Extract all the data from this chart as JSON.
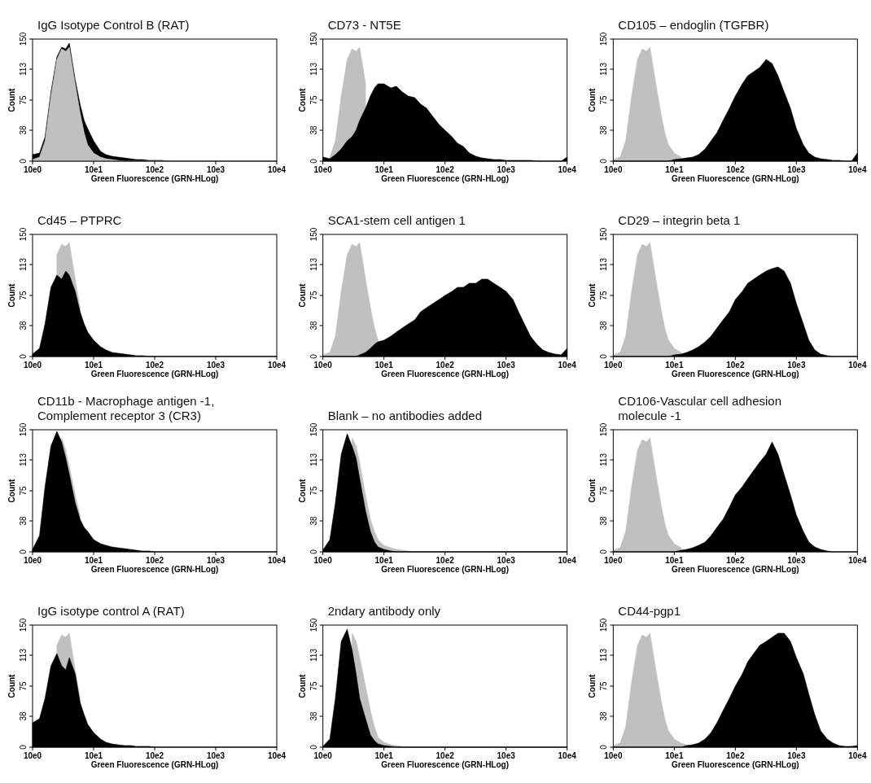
{
  "chart_data": [
    {
      "type": "area",
      "title": "IgG Isotype Control B (RAT)",
      "xlabel": "Green Fluorescence (GRN-HLog)",
      "ylabel": "Count",
      "log": "x",
      "xlim": [
        10,
        100000
      ],
      "ylim": [
        0,
        150
      ],
      "xticks": [
        {
          "value": 10,
          "label": "10e0"
        },
        {
          "value": 100,
          "label": "10e1"
        },
        {
          "value": 1000,
          "label": "10e2"
        },
        {
          "value": 10000,
          "label": "10e3"
        },
        {
          "value": 100000,
          "label": "10e4"
        }
      ],
      "yticks": [
        0,
        38,
        75,
        113,
        150
      ],
      "x": [
        10,
        13,
        16,
        20,
        25,
        30,
        35,
        40,
        50,
        60,
        70,
        80,
        100,
        130,
        160,
        200,
        250,
        320,
        400,
        500,
        630,
        800,
        1000,
        1300,
        1600,
        2000,
        2500,
        3200,
        4000,
        5000,
        6300,
        8000,
        10000,
        13000,
        16000,
        20000,
        25000,
        32000,
        40000,
        50000,
        63000,
        80000,
        100000
      ],
      "series": [
        {
          "color": "#000000",
          "values": [
            8,
            10,
            30,
            85,
            128,
            140,
            138,
            145,
            100,
            70,
            50,
            40,
            25,
            12,
            8,
            6,
            5,
            4,
            3,
            2,
            2,
            1,
            1,
            1,
            0,
            0,
            0,
            0,
            0,
            0,
            0,
            0,
            0,
            0,
            0,
            0,
            0,
            0,
            0,
            0,
            0,
            0,
            0
          ]
        },
        {
          "color": "#c0c0c0",
          "values": [
            2,
            5,
            25,
            80,
            125,
            138,
            135,
            140,
            95,
            60,
            35,
            20,
            10,
            5,
            3,
            2,
            1,
            0,
            0,
            0,
            0,
            0,
            0,
            0,
            0,
            0,
            0,
            0,
            0,
            0,
            0,
            0,
            0,
            0,
            0,
            0,
            0,
            0,
            0,
            0,
            0,
            0,
            0
          ]
        }
      ]
    },
    {
      "type": "area",
      "title": "CD73  - NT5E",
      "xlabel": "Green Fluorescence (GRN-HLog)",
      "ylabel": "Count",
      "log": "x",
      "xlim": [
        10,
        100000
      ],
      "ylim": [
        0,
        150
      ],
      "xticks": [
        {
          "value": 10,
          "label": "10e0"
        },
        {
          "value": 100,
          "label": "10e1"
        },
        {
          "value": 1000,
          "label": "10e2"
        },
        {
          "value": 10000,
          "label": "10e3"
        },
        {
          "value": 100000,
          "label": "10e4"
        }
      ],
      "yticks": [
        0,
        38,
        75,
        113,
        150
      ],
      "x": [
        10,
        13,
        16,
        20,
        25,
        30,
        35,
        40,
        50,
        60,
        70,
        80,
        100,
        130,
        160,
        200,
        250,
        320,
        400,
        500,
        630,
        800,
        1000,
        1300,
        1600,
        2000,
        2500,
        3200,
        4000,
        5000,
        6300,
        8000,
        10000,
        13000,
        16000,
        20000,
        25000,
        32000,
        40000,
        50000,
        63000,
        80000,
        100000
      ],
      "series": [
        {
          "color": "#c0c0c0",
          "values": [
            null,
            5,
            25,
            80,
            125,
            138,
            135,
            140,
            95,
            null,
            null,
            null,
            null,
            null,
            null,
            null,
            null,
            null,
            null,
            null,
            null,
            null,
            null,
            null,
            null,
            null,
            null,
            null,
            null,
            null,
            null,
            null,
            null,
            null,
            null,
            null,
            null,
            null,
            null,
            null,
            null,
            null,
            null
          ]
        },
        {
          "color": "#000000",
          "values": [
            5,
            3,
            8,
            15,
            25,
            30,
            38,
            50,
            65,
            80,
            90,
            95,
            95,
            90,
            92,
            85,
            80,
            78,
            70,
            65,
            55,
            45,
            38,
            30,
            22,
            18,
            10,
            6,
            4,
            3,
            2,
            2,
            1,
            1,
            1,
            1,
            1,
            0,
            0,
            0,
            0,
            0,
            5
          ]
        }
      ]
    },
    {
      "type": "area",
      "title": "CD105 – endoglin (TGFBR)",
      "xlabel": "Green Fluorescence (GRN-HLog)",
      "ylabel": "Count",
      "log": "x",
      "xlim": [
        10,
        100000
      ],
      "ylim": [
        0,
        150
      ],
      "xticks": [
        {
          "value": 10,
          "label": "10e0"
        },
        {
          "value": 100,
          "label": "10e1"
        },
        {
          "value": 1000,
          "label": "10e2"
        },
        {
          "value": 10000,
          "label": "10e3"
        },
        {
          "value": 100000,
          "label": "10e4"
        }
      ],
      "yticks": [
        0,
        38,
        75,
        113,
        150
      ],
      "x": [
        10,
        13,
        16,
        20,
        25,
        30,
        35,
        40,
        50,
        60,
        70,
        80,
        100,
        130,
        160,
        200,
        250,
        320,
        400,
        500,
        630,
        800,
        1000,
        1300,
        1600,
        2000,
        2500,
        3200,
        4000,
        5000,
        6300,
        8000,
        10000,
        13000,
        16000,
        20000,
        25000,
        32000,
        40000,
        50000,
        63000,
        80000,
        100000
      ],
      "series": [
        {
          "color": "#c0c0c0",
          "values": [
            2,
            5,
            25,
            80,
            125,
            138,
            135,
            140,
            95,
            60,
            35,
            20,
            10,
            5,
            null,
            null,
            null,
            null,
            null,
            null,
            null,
            null,
            null,
            null,
            null,
            null,
            null,
            null,
            null,
            null,
            null,
            null,
            null,
            null,
            null,
            null,
            null,
            null,
            null,
            null,
            null,
            null,
            null
          ]
        },
        {
          "color": "#000000",
          "values": [
            0,
            0,
            0,
            0,
            0,
            0,
            0,
            0,
            0,
            0,
            0,
            0,
            2,
            3,
            4,
            5,
            8,
            15,
            25,
            35,
            50,
            65,
            80,
            95,
            105,
            110,
            115,
            125,
            120,
            105,
            85,
            65,
            40,
            20,
            10,
            5,
            3,
            2,
            1,
            1,
            0,
            0,
            10
          ]
        }
      ]
    },
    {
      "type": "area",
      "title": "Cd45 – PTPRC",
      "xlabel": "Green Fluorescence (GRN-HLog)",
      "ylabel": "Count",
      "log": "x",
      "xlim": [
        10,
        100000
      ],
      "ylim": [
        0,
        150
      ],
      "xticks": [
        {
          "value": 10,
          "label": "10e0"
        },
        {
          "value": 100,
          "label": "10e1"
        },
        {
          "value": 1000,
          "label": "10e2"
        },
        {
          "value": 10000,
          "label": "10e3"
        },
        {
          "value": 100000,
          "label": "10e4"
        }
      ],
      "yticks": [
        0,
        38,
        75,
        113,
        150
      ],
      "x": [
        10,
        13,
        16,
        20,
        25,
        30,
        35,
        40,
        50,
        60,
        70,
        80,
        100,
        130,
        160,
        200,
        250,
        320,
        400,
        500,
        630,
        800,
        1000,
        1300,
        1600,
        2000,
        2500,
        3200,
        4000,
        5000,
        6300,
        8000,
        10000,
        13000,
        16000,
        20000,
        25000,
        32000,
        40000,
        50000,
        63000,
        80000,
        100000
      ],
      "series": [
        {
          "color": "#c0c0c0",
          "values": [
            null,
            null,
            null,
            null,
            125,
            138,
            135,
            140,
            95,
            60,
            null,
            null,
            null,
            null,
            null,
            null,
            null,
            null,
            null,
            null,
            null,
            null,
            null,
            null,
            null,
            null,
            null,
            null,
            null,
            null,
            null,
            null,
            null,
            null,
            null,
            null,
            null,
            null,
            null,
            null,
            null,
            null,
            null
          ]
        },
        {
          "color": "#000000",
          "values": [
            3,
            10,
            40,
            85,
            100,
            95,
            105,
            100,
            80,
            55,
            40,
            30,
            20,
            12,
            8,
            5,
            4,
            3,
            2,
            1,
            1,
            0,
            0,
            0,
            0,
            0,
            0,
            0,
            0,
            0,
            0,
            0,
            0,
            0,
            0,
            0,
            0,
            0,
            0,
            0,
            0,
            0,
            0
          ]
        }
      ]
    },
    {
      "type": "area",
      "title": "SCA1-stem cell antigen 1",
      "xlabel": "Green Fluorescence (GRN-HLog)",
      "ylabel": "Count",
      "log": "x",
      "xlim": [
        10,
        100000
      ],
      "ylim": [
        0,
        150
      ],
      "xticks": [
        {
          "value": 10,
          "label": "10e0"
        },
        {
          "value": 100,
          "label": "10e1"
        },
        {
          "value": 1000,
          "label": "10e2"
        },
        {
          "value": 10000,
          "label": "10e3"
        },
        {
          "value": 100000,
          "label": "10e4"
        }
      ],
      "yticks": [
        0,
        38,
        75,
        113,
        150
      ],
      "x": [
        10,
        13,
        16,
        20,
        25,
        30,
        35,
        40,
        50,
        60,
        70,
        80,
        100,
        130,
        160,
        200,
        250,
        320,
        400,
        500,
        630,
        800,
        1000,
        1300,
        1600,
        2000,
        2500,
        3200,
        4000,
        5000,
        6300,
        8000,
        10000,
        13000,
        16000,
        20000,
        25000,
        32000,
        40000,
        50000,
        63000,
        80000,
        100000
      ],
      "series": [
        {
          "color": "#c0c0c0",
          "values": [
            2,
            5,
            25,
            80,
            125,
            138,
            135,
            140,
            95,
            60,
            35,
            20,
            null,
            null,
            null,
            null,
            null,
            null,
            null,
            null,
            null,
            null,
            null,
            null,
            null,
            null,
            null,
            null,
            null,
            null,
            null,
            null,
            null,
            null,
            null,
            null,
            null,
            null,
            null,
            null,
            null,
            null,
            null
          ]
        },
        {
          "color": "#000000",
          "values": [
            0,
            0,
            0,
            0,
            0,
            0,
            0,
            2,
            5,
            10,
            15,
            18,
            20,
            25,
            30,
            35,
            40,
            45,
            55,
            60,
            65,
            70,
            75,
            80,
            85,
            85,
            90,
            90,
            95,
            95,
            90,
            85,
            80,
            70,
            55,
            40,
            25,
            15,
            8,
            5,
            3,
            2,
            10
          ]
        }
      ]
    },
    {
      "type": "area",
      "title": "CD29 – integrin beta 1",
      "xlabel": "Green Fluorescence (GRN-HLog)",
      "ylabel": "Count",
      "log": "x",
      "xlim": [
        10,
        100000
      ],
      "ylim": [
        0,
        150
      ],
      "xticks": [
        {
          "value": 10,
          "label": "10e0"
        },
        {
          "value": 100,
          "label": "10e1"
        },
        {
          "value": 1000,
          "label": "10e2"
        },
        {
          "value": 10000,
          "label": "10e3"
        },
        {
          "value": 100000,
          "label": "10e4"
        }
      ],
      "yticks": [
        0,
        38,
        75,
        113,
        150
      ],
      "x": [
        10,
        13,
        16,
        20,
        25,
        30,
        35,
        40,
        50,
        60,
        70,
        80,
        100,
        130,
        160,
        200,
        250,
        320,
        400,
        500,
        630,
        800,
        1000,
        1300,
        1600,
        2000,
        2500,
        3200,
        4000,
        5000,
        6300,
        8000,
        10000,
        13000,
        16000,
        20000,
        25000,
        32000,
        40000,
        50000,
        63000,
        80000,
        100000
      ],
      "series": [
        {
          "color": "#c0c0c0",
          "values": [
            2,
            5,
            25,
            80,
            125,
            138,
            135,
            140,
            95,
            60,
            35,
            20,
            10,
            5,
            null,
            null,
            null,
            null,
            null,
            null,
            null,
            null,
            null,
            null,
            null,
            null,
            null,
            null,
            null,
            null,
            null,
            null,
            null,
            null,
            null,
            null,
            null,
            null,
            null,
            null,
            null,
            null,
            null
          ]
        },
        {
          "color": "#000000",
          "values": [
            0,
            0,
            0,
            0,
            0,
            0,
            0,
            0,
            0,
            0,
            0,
            0,
            2,
            3,
            5,
            8,
            12,
            18,
            25,
            35,
            45,
            55,
            70,
            80,
            90,
            95,
            100,
            105,
            108,
            110,
            105,
            90,
            65,
            40,
            20,
            8,
            3,
            1,
            0,
            0,
            0,
            0,
            0
          ]
        }
      ]
    },
    {
      "type": "area",
      "title": "CD11b  - Macrophage antigen -1, Complement receptor 3 (CR3)",
      "xlabel": "Green Fluorescence (GRN-HLog)",
      "ylabel": "Count",
      "log": "x",
      "xlim": [
        10,
        100000
      ],
      "ylim": [
        0,
        150
      ],
      "xticks": [
        {
          "value": 10,
          "label": "10e0"
        },
        {
          "value": 100,
          "label": "10e1"
        },
        {
          "value": 1000,
          "label": "10e2"
        },
        {
          "value": 10000,
          "label": "10e3"
        },
        {
          "value": 100000,
          "label": "10e4"
        }
      ],
      "yticks": [
        0,
        38,
        75,
        113,
        150
      ],
      "x": [
        10,
        13,
        16,
        20,
        25,
        30,
        35,
        40,
        50,
        60,
        70,
        80,
        100,
        130,
        160,
        200,
        250,
        320,
        400,
        500,
        630,
        800,
        1000,
        1300,
        1600,
        2000,
        2500,
        3200,
        4000,
        5000,
        6300,
        8000,
        10000,
        13000,
        16000,
        20000,
        25000,
        32000,
        40000,
        50000,
        63000,
        80000,
        100000
      ],
      "series": [
        {
          "color": "#c0c0c0",
          "values": [
            null,
            null,
            null,
            null,
            null,
            140,
            125,
            105,
            70,
            45,
            null,
            null,
            null,
            null,
            null,
            null,
            null,
            null,
            null,
            null,
            null,
            null,
            null,
            null,
            null,
            null,
            null,
            null,
            null,
            null,
            null,
            null,
            null,
            null,
            null,
            null,
            null,
            null,
            null,
            null,
            null,
            null,
            null
          ]
        },
        {
          "color": "#000000",
          "values": [
            3,
            20,
            80,
            130,
            148,
            135,
            115,
            95,
            60,
            40,
            30,
            25,
            15,
            10,
            8,
            6,
            5,
            4,
            3,
            2,
            1,
            1,
            0,
            0,
            0,
            0,
            0,
            0,
            0,
            0,
            0,
            0,
            0,
            0,
            0,
            0,
            0,
            0,
            0,
            0,
            0,
            0,
            0
          ]
        }
      ]
    },
    {
      "type": "area",
      "title": "Blank – no antibodies added",
      "xlabel": "Green Fluorescence (GRN-HLog)",
      "ylabel": "Count",
      "log": "x",
      "xlim": [
        10,
        100000
      ],
      "ylim": [
        0,
        150
      ],
      "xticks": [
        {
          "value": 10,
          "label": "10e0"
        },
        {
          "value": 100,
          "label": "10e1"
        },
        {
          "value": 1000,
          "label": "10e2"
        },
        {
          "value": 10000,
          "label": "10e3"
        },
        {
          "value": 100000,
          "label": "10e4"
        }
      ],
      "yticks": [
        0,
        38,
        75,
        113,
        150
      ],
      "x": [
        10,
        13,
        16,
        20,
        25,
        30,
        35,
        40,
        50,
        60,
        70,
        80,
        100,
        130,
        160,
        200,
        250,
        320,
        400,
        500,
        630,
        800,
        1000,
        1300,
        1600,
        2000,
        2500,
        3200,
        4000,
        5000,
        6300,
        8000,
        10000,
        13000,
        16000,
        20000,
        25000,
        32000,
        40000,
        50000,
        63000,
        80000,
        100000
      ],
      "series": [
        {
          "color": "#c0c0c0",
          "values": [
            null,
            null,
            null,
            null,
            null,
            140,
            130,
            110,
            70,
            40,
            25,
            15,
            8,
            5,
            3,
            2,
            1,
            0,
            0,
            0,
            0,
            0,
            0,
            0,
            0,
            0,
            0,
            0,
            0,
            0,
            0,
            0,
            0,
            0,
            0,
            0,
            0,
            0,
            0,
            0,
            0,
            0,
            0
          ]
        },
        {
          "color": "#000000",
          "values": [
            2,
            15,
            60,
            120,
            145,
            130,
            115,
            90,
            50,
            25,
            12,
            6,
            3,
            1,
            0,
            0,
            0,
            0,
            0,
            0,
            0,
            0,
            0,
            0,
            0,
            0,
            0,
            0,
            0,
            0,
            0,
            0,
            0,
            0,
            0,
            0,
            0,
            0,
            0,
            0,
            0,
            0,
            0
          ]
        }
      ]
    },
    {
      "type": "area",
      "title": "CD106-Vascular cell adhesion molecule -1",
      "xlabel": "Green Fluorescence (GRN-HLog)",
      "ylabel": "Count",
      "log": "x",
      "xlim": [
        10,
        100000
      ],
      "ylim": [
        0,
        150
      ],
      "xticks": [
        {
          "value": 10,
          "label": "10e0"
        },
        {
          "value": 100,
          "label": "10e1"
        },
        {
          "value": 1000,
          "label": "10e2"
        },
        {
          "value": 10000,
          "label": "10e3"
        },
        {
          "value": 100000,
          "label": "10e4"
        }
      ],
      "yticks": [
        0,
        38,
        75,
        113,
        150
      ],
      "x": [
        10,
        13,
        16,
        20,
        25,
        30,
        35,
        40,
        50,
        60,
        70,
        80,
        100,
        130,
        160,
        200,
        250,
        320,
        400,
        500,
        630,
        800,
        1000,
        1300,
        1600,
        2000,
        2500,
        3200,
        4000,
        5000,
        6300,
        8000,
        10000,
        13000,
        16000,
        20000,
        25000,
        32000,
        40000,
        50000,
        63000,
        80000,
        100000
      ],
      "series": [
        {
          "color": "#c0c0c0",
          "values": [
            2,
            5,
            25,
            80,
            125,
            138,
            135,
            140,
            95,
            60,
            35,
            20,
            10,
            5,
            null,
            null,
            null,
            null,
            null,
            null,
            null,
            null,
            null,
            null,
            null,
            null,
            null,
            null,
            null,
            null,
            null,
            null,
            null,
            null,
            null,
            null,
            null,
            null,
            null,
            null,
            null,
            null,
            null
          ]
        },
        {
          "color": "#000000",
          "values": [
            0,
            0,
            0,
            0,
            0,
            0,
            0,
            0,
            0,
            0,
            0,
            0,
            0,
            2,
            3,
            5,
            8,
            12,
            20,
            30,
            40,
            55,
            70,
            80,
            90,
            100,
            110,
            120,
            135,
            120,
            95,
            70,
            45,
            25,
            12,
            6,
            3,
            1,
            0,
            0,
            0,
            0,
            0
          ]
        }
      ]
    },
    {
      "type": "area",
      "title": "IgG isotype control A (RAT)",
      "xlabel": "Green Fluorescence (GRN-HLog)",
      "ylabel": "Count",
      "log": "x",
      "xlim": [
        10,
        100000
      ],
      "ylim": [
        0,
        150
      ],
      "xticks": [
        {
          "value": 10,
          "label": "10e0"
        },
        {
          "value": 100,
          "label": "10e1"
        },
        {
          "value": 1000,
          "label": "10e2"
        },
        {
          "value": 10000,
          "label": "10e3"
        },
        {
          "value": 100000,
          "label": "10e4"
        }
      ],
      "yticks": [
        0,
        38,
        75,
        113,
        150
      ],
      "x": [
        10,
        13,
        16,
        20,
        25,
        30,
        35,
        40,
        50,
        60,
        70,
        80,
        100,
        130,
        160,
        200,
        250,
        320,
        400,
        500,
        630,
        800,
        1000,
        1300,
        1600,
        2000,
        2500,
        3200,
        4000,
        5000,
        6300,
        8000,
        10000,
        13000,
        16000,
        20000,
        25000,
        32000,
        40000,
        50000,
        63000,
        80000,
        100000
      ],
      "series": [
        {
          "color": "#c0c0c0",
          "values": [
            null,
            null,
            null,
            null,
            125,
            138,
            135,
            140,
            95,
            60,
            null,
            null,
            null,
            null,
            null,
            null,
            null,
            null,
            null,
            null,
            null,
            null,
            null,
            null,
            null,
            null,
            null,
            null,
            null,
            null,
            null,
            null,
            null,
            null,
            null,
            null,
            null,
            null,
            null,
            null,
            null,
            null,
            null
          ]
        },
        {
          "color": "#000000",
          "values": [
            30,
            35,
            60,
            100,
            115,
            100,
            95,
            110,
            90,
            55,
            40,
            28,
            18,
            10,
            6,
            4,
            3,
            2,
            2,
            1,
            1,
            1,
            0,
            0,
            0,
            0,
            0,
            0,
            0,
            0,
            0,
            0,
            0,
            0,
            0,
            0,
            0,
            0,
            0,
            0,
            0,
            0,
            0
          ]
        }
      ]
    },
    {
      "type": "area",
      "title": "2ndary antibody only",
      "xlabel": "Green Fluorescence (GRN-HLog)",
      "ylabel": "Count",
      "log": "x",
      "xlim": [
        10,
        100000
      ],
      "ylim": [
        0,
        150
      ],
      "xticks": [
        {
          "value": 10,
          "label": "10e0"
        },
        {
          "value": 100,
          "label": "10e1"
        },
        {
          "value": 1000,
          "label": "10e2"
        },
        {
          "value": 10000,
          "label": "10e3"
        },
        {
          "value": 100000,
          "label": "10e4"
        }
      ],
      "yticks": [
        0,
        38,
        75,
        113,
        150
      ],
      "x": [
        10,
        13,
        16,
        20,
        25,
        30,
        35,
        40,
        50,
        60,
        70,
        80,
        100,
        130,
        160,
        200,
        250,
        320,
        400,
        500,
        630,
        800,
        1000,
        1300,
        1600,
        2000,
        2500,
        3200,
        4000,
        5000,
        6300,
        8000,
        10000,
        13000,
        16000,
        20000,
        25000,
        32000,
        40000,
        50000,
        63000,
        80000,
        100000
      ],
      "series": [
        {
          "color": "#c0c0c0",
          "values": [
            null,
            null,
            null,
            null,
            null,
            140,
            130,
            110,
            75,
            45,
            25,
            12,
            6,
            3,
            2,
            1,
            0,
            0,
            0,
            0,
            0,
            0,
            0,
            0,
            0,
            0,
            0,
            0,
            0,
            0,
            0,
            0,
            0,
            0,
            0,
            0,
            0,
            0,
            0,
            0,
            0,
            0,
            0
          ]
        },
        {
          "color": "#000000",
          "values": [
            1,
            10,
            60,
            130,
            145,
            120,
            90,
            60,
            35,
            15,
            8,
            4,
            2,
            1,
            0,
            0,
            0,
            0,
            0,
            0,
            0,
            0,
            0,
            0,
            0,
            0,
            0,
            0,
            0,
            0,
            0,
            0,
            0,
            0,
            0,
            0,
            0,
            0,
            0,
            0,
            0,
            0,
            0
          ]
        }
      ]
    },
    {
      "type": "area",
      "title": "CD44-pgp1",
      "xlabel": "Green Fluorescence (GRN-HLog)",
      "ylabel": "Count",
      "log": "x",
      "xlim": [
        10,
        100000
      ],
      "ylim": [
        0,
        150
      ],
      "xticks": [
        {
          "value": 10,
          "label": "10e0"
        },
        {
          "value": 100,
          "label": "10e1"
        },
        {
          "value": 1000,
          "label": "10e2"
        },
        {
          "value": 10000,
          "label": "10e3"
        },
        {
          "value": 100000,
          "label": "10e4"
        }
      ],
      "yticks": [
        0,
        38,
        75,
        113,
        150
      ],
      "x": [
        10,
        13,
        16,
        20,
        25,
        30,
        35,
        40,
        50,
        60,
        70,
        80,
        100,
        130,
        160,
        200,
        250,
        320,
        400,
        500,
        630,
        800,
        1000,
        1300,
        1600,
        2000,
        2500,
        3200,
        4000,
        5000,
        6300,
        8000,
        10000,
        13000,
        16000,
        20000,
        25000,
        32000,
        40000,
        50000,
        63000,
        80000,
        100000
      ],
      "series": [
        {
          "color": "#c0c0c0",
          "values": [
            2,
            5,
            25,
            80,
            125,
            138,
            135,
            140,
            95,
            60,
            35,
            20,
            10,
            5,
            3,
            null,
            null,
            null,
            null,
            null,
            null,
            null,
            null,
            null,
            null,
            null,
            null,
            null,
            null,
            null,
            null,
            null,
            null,
            null,
            null,
            null,
            null,
            null,
            null,
            null,
            null,
            null,
            null
          ]
        },
        {
          "color": "#000000",
          "values": [
            0,
            0,
            0,
            0,
            0,
            0,
            0,
            0,
            0,
            0,
            0,
            0,
            0,
            0,
            2,
            3,
            5,
            10,
            18,
            30,
            45,
            60,
            75,
            90,
            105,
            115,
            125,
            130,
            135,
            140,
            140,
            130,
            110,
            90,
            65,
            40,
            20,
            10,
            5,
            2,
            1,
            1,
            2
          ]
        }
      ]
    }
  ]
}
